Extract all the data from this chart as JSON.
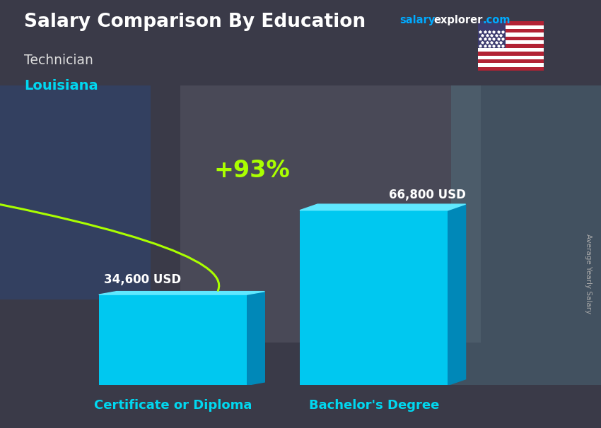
{
  "title": "Salary Comparison By Education",
  "subtitle_job": "Technician",
  "subtitle_location": "Louisiana",
  "ylabel": "Average Yearly Salary",
  "categories": [
    "Certificate or Diploma",
    "Bachelor's Degree"
  ],
  "values": [
    34600,
    66800
  ],
  "value_labels": [
    "34,600 USD",
    "66,800 USD"
  ],
  "pct_change": "+93%",
  "bar_color_face": "#00c8f0",
  "bar_color_dark": "#0088b8",
  "bar_color_top": "#60e8ff",
  "bg_color": "#555566",
  "title_color": "#ffffff",
  "job_color": "#dddddd",
  "location_color": "#00d8f0",
  "category_color": "#00d8f0",
  "value_color": "#ffffff",
  "pct_color": "#aaff00",
  "arrow_color": "#aaff00",
  "site_salary_color": "#00aaff",
  "site_explorer_color": "#ffffff",
  "site_com_color": "#00aaff",
  "ylim_max": 85000,
  "bar_width": 0.28,
  "positions": [
    0.27,
    0.65
  ]
}
